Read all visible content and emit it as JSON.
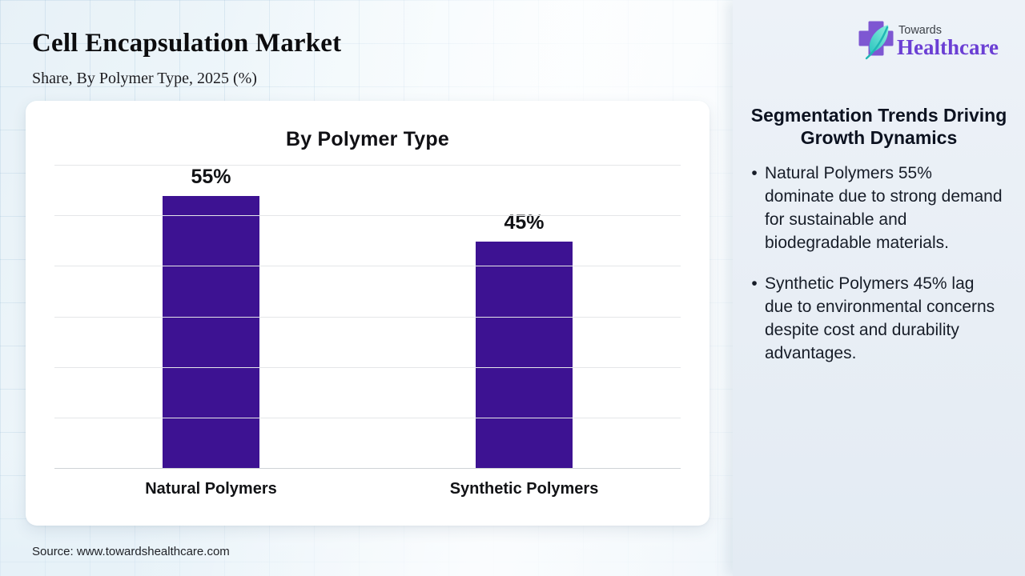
{
  "page": {
    "title": "Cell Encapsulation Market",
    "subtitle": "Share, By Polymer Type, 2025 (%)",
    "source": "Source: www.towardshealthcare.com"
  },
  "logo": {
    "line1": "Towards",
    "line2": "Healthcare",
    "cross_color": "#7e57d2",
    "leaf_color_light": "#7ce8d8",
    "leaf_color_dark": "#1fb7b4",
    "wordmark_color": "#6b3fd4",
    "towards_color": "#3c4148"
  },
  "chart_data": {
    "type": "bar",
    "title": "By Polymer Type",
    "categories": [
      "Natural Polymers",
      "Synthetic Polymers"
    ],
    "values": [
      55,
      45
    ],
    "value_labels": [
      "55%",
      "45%"
    ],
    "ylim": [
      0,
      60
    ],
    "grid_step": 10,
    "grid": true,
    "legend": false,
    "bar_color": "#3d1292",
    "xlabel": "",
    "ylabel": ""
  },
  "right_panel": {
    "heading": "Segmentation Trends Driving Growth Dynamics",
    "bullets": [
      "Natural Polymers 55% dominate due to strong demand for sustainable and biodegradable materials.",
      "Synthetic Polymers 45% lag due to environmental concerns despite cost and durability advantages."
    ]
  }
}
